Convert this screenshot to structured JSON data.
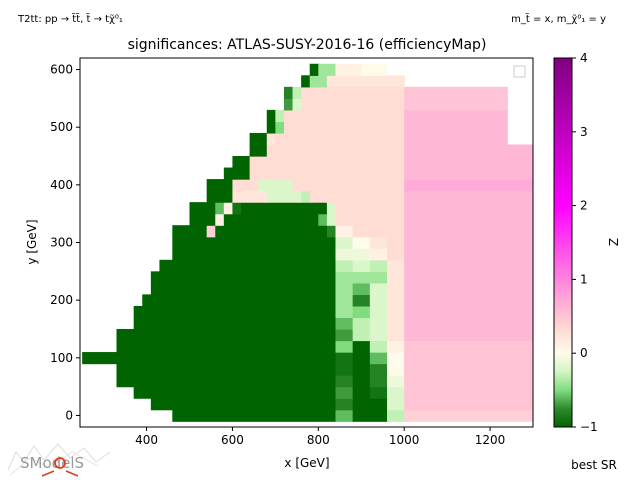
{
  "figure": {
    "top_left_note": "T2tt: pp → t̃t̃, t̃ → tχ̃⁰₁",
    "top_right_note": "m_t̃ = x, m_χ̃⁰₁ = y",
    "bottom_right_note": "best SR",
    "logo_text": "SModelS"
  },
  "colorbar": {
    "label": "Z",
    "min": -1,
    "max": 4,
    "ticks": [
      "−1",
      "0",
      "1",
      "2",
      "3",
      "4"
    ],
    "stops": [
      {
        "value": -1,
        "color": "#006400"
      },
      {
        "value": -0.75,
        "color": "#2e8b2e"
      },
      {
        "value": -0.5,
        "color": "#7fdc7f"
      },
      {
        "value": -0.25,
        "color": "#d2f5c3"
      },
      {
        "value": 0,
        "color": "#fffbea"
      },
      {
        "value": 0.3,
        "color": "#ffdcd4"
      },
      {
        "value": 0.8,
        "color": "#ff9ed8"
      },
      {
        "value": 2,
        "color": "#ff00ff"
      },
      {
        "value": 4,
        "color": "#800080"
      }
    ]
  },
  "chart_data": {
    "type": "heatmap",
    "title": "significances: ATLAS-SUSY-2016-16 (efficiencyMap)",
    "xlabel": "x [GeV]",
    "ylabel": "y [GeV]",
    "xlim": [
      245,
      1300
    ],
    "ylim": [
      -20,
      620
    ],
    "xticks": [
      400,
      600,
      800,
      1000,
      1200
    ],
    "yticks": [
      0,
      100,
      200,
      300,
      400,
      500,
      600
    ],
    "grid": false,
    "legend": "top-right (empty)",
    "cell_width_gev": 24,
    "cell_height_gev": 20,
    "rows": [
      {
        "y": 0,
        "z": [
          [
            460,
            840,
            -1
          ],
          [
            840,
            880,
            -0.6
          ],
          [
            880,
            960,
            -1
          ],
          [
            960,
            1000,
            -0.3
          ],
          [
            1000,
            1300,
            0.4
          ]
        ]
      },
      {
        "y": 20,
        "z": [
          [
            410,
            840,
            -1
          ],
          [
            840,
            880,
            -0.8
          ],
          [
            880,
            960,
            -1
          ],
          [
            960,
            1000,
            -0.2
          ],
          [
            1000,
            1300,
            0.5
          ]
        ]
      },
      {
        "y": 40,
        "z": [
          [
            370,
            840,
            -1
          ],
          [
            840,
            880,
            -0.7
          ],
          [
            880,
            920,
            -1
          ],
          [
            920,
            960,
            -0.9
          ],
          [
            960,
            1000,
            -0.2
          ],
          [
            1000,
            1300,
            0.5
          ]
        ]
      },
      {
        "y": 60,
        "z": [
          [
            330,
            840,
            -1
          ],
          [
            840,
            880,
            -0.8
          ],
          [
            880,
            920,
            -1
          ],
          [
            920,
            960,
            -0.8
          ],
          [
            960,
            1000,
            -0.1
          ],
          [
            1000,
            1300,
            0.5
          ]
        ]
      },
      {
        "y": 80,
        "z": [
          [
            330,
            840,
            -1
          ],
          [
            840,
            880,
            -0.9
          ],
          [
            880,
            920,
            -1
          ],
          [
            920,
            960,
            -0.8
          ],
          [
            960,
            1000,
            0.0
          ],
          [
            1000,
            1300,
            0.5
          ]
        ]
      },
      {
        "y": 100,
        "z": [
          [
            250,
            840,
            -1
          ],
          [
            840,
            880,
            -0.9
          ],
          [
            880,
            920,
            -1
          ],
          [
            920,
            960,
            -0.6
          ],
          [
            960,
            1000,
            0.0
          ],
          [
            1000,
            1300,
            0.5
          ]
        ]
      },
      {
        "y": 120,
        "z": [
          [
            330,
            840,
            -1
          ],
          [
            840,
            880,
            -0.5
          ],
          [
            880,
            920,
            -1
          ],
          [
            920,
            960,
            -0.3
          ],
          [
            960,
            1000,
            0.1
          ],
          [
            1000,
            1300,
            0.5
          ]
        ]
      },
      {
        "y": 140,
        "z": [
          [
            330,
            840,
            -1
          ],
          [
            840,
            880,
            -0.7
          ],
          [
            880,
            920,
            -0.3
          ],
          [
            920,
            960,
            -0.2
          ],
          [
            960,
            1000,
            0.2
          ],
          [
            1000,
            1300,
            0.6
          ]
        ]
      },
      {
        "y": 160,
        "z": [
          [
            370,
            840,
            -1
          ],
          [
            840,
            880,
            -0.6
          ],
          [
            880,
            920,
            -0.3
          ],
          [
            920,
            960,
            -0.2
          ],
          [
            960,
            1000,
            0.2
          ],
          [
            1000,
            1300,
            0.6
          ]
        ]
      },
      {
        "y": 180,
        "z": [
          [
            370,
            840,
            -1
          ],
          [
            840,
            880,
            -0.4
          ],
          [
            880,
            920,
            -0.5
          ],
          [
            920,
            960,
            -0.2
          ],
          [
            960,
            1000,
            0.2
          ],
          [
            1000,
            1300,
            0.6
          ]
        ]
      },
      {
        "y": 200,
        "z": [
          [
            390,
            840,
            -1
          ],
          [
            840,
            880,
            -0.4
          ],
          [
            880,
            920,
            -0.8
          ],
          [
            920,
            960,
            -0.2
          ],
          [
            960,
            1000,
            0.2
          ],
          [
            1000,
            1300,
            0.6
          ]
        ]
      },
      {
        "y": 220,
        "z": [
          [
            410,
            840,
            -1
          ],
          [
            840,
            880,
            -0.4
          ],
          [
            880,
            920,
            -0.6
          ],
          [
            920,
            960,
            -0.2
          ],
          [
            960,
            1000,
            0.2
          ],
          [
            1000,
            1300,
            0.6
          ]
        ]
      },
      {
        "y": 240,
        "z": [
          [
            410,
            840,
            -1
          ],
          [
            840,
            880,
            -0.4
          ],
          [
            880,
            920,
            -0.4
          ],
          [
            920,
            960,
            -0.4
          ],
          [
            960,
            1000,
            0.2
          ],
          [
            1000,
            1300,
            0.6
          ]
        ]
      },
      {
        "y": 260,
        "z": [
          [
            430,
            840,
            -1
          ],
          [
            840,
            880,
            -0.3
          ],
          [
            880,
            920,
            -0.2
          ],
          [
            920,
            960,
            -0.3
          ],
          [
            960,
            1000,
            0.2
          ],
          [
            1000,
            1300,
            0.6
          ]
        ]
      },
      {
        "y": 280,
        "z": [
          [
            460,
            840,
            -1
          ],
          [
            840,
            880,
            -0.1
          ],
          [
            880,
            920,
            -0.1
          ],
          [
            920,
            960,
            0.1
          ],
          [
            960,
            1000,
            0.3
          ],
          [
            1000,
            1300,
            0.6
          ]
        ]
      },
      {
        "y": 300,
        "z": [
          [
            460,
            840,
            -1
          ],
          [
            840,
            880,
            -0.2
          ],
          [
            880,
            920,
            0.0
          ],
          [
            920,
            960,
            0.2
          ],
          [
            960,
            1000,
            0.3
          ],
          [
            1000,
            1300,
            0.6
          ]
        ]
      },
      {
        "y": 320,
        "z": [
          [
            460,
            540,
            -1
          ],
          [
            540,
            560,
            0.4
          ],
          [
            560,
            820,
            -1
          ],
          [
            820,
            840,
            -0.8
          ],
          [
            840,
            880,
            0.1
          ],
          [
            880,
            1000,
            0.3
          ],
          [
            1000,
            1300,
            0.6
          ]
        ]
      },
      {
        "y": 340,
        "z": [
          [
            500,
            560,
            -1
          ],
          [
            560,
            580,
            0.1
          ],
          [
            580,
            800,
            -1
          ],
          [
            800,
            820,
            -0.6
          ],
          [
            820,
            840,
            -0.2
          ],
          [
            840,
            1000,
            0.3
          ],
          [
            1000,
            1300,
            0.6
          ]
        ]
      },
      {
        "y": 360,
        "z": [
          [
            500,
            560,
            -1
          ],
          [
            560,
            580,
            -0.6
          ],
          [
            580,
            600,
            0.1
          ],
          [
            600,
            620,
            -0.9
          ],
          [
            620,
            820,
            -1
          ],
          [
            820,
            840,
            -0.2
          ],
          [
            840,
            1000,
            0.3
          ],
          [
            1000,
            1300,
            0.6
          ]
        ]
      },
      {
        "y": 380,
        "z": [
          [
            540,
            600,
            -1
          ],
          [
            600,
            680,
            0.2
          ],
          [
            680,
            760,
            -0.2
          ],
          [
            760,
            780,
            -0.3
          ],
          [
            780,
            1000,
            0.3
          ],
          [
            1000,
            1300,
            0.6
          ]
        ]
      },
      {
        "y": 400,
        "z": [
          [
            540,
            600,
            -1
          ],
          [
            600,
            660,
            0.3
          ],
          [
            660,
            740,
            -0.2
          ],
          [
            740,
            1000,
            0.3
          ],
          [
            1000,
            1300,
            0.7
          ]
        ]
      },
      {
        "y": 420,
        "z": [
          [
            580,
            640,
            -1
          ],
          [
            640,
            1000,
            0.3
          ],
          [
            1000,
            1300,
            0.6
          ]
        ]
      },
      {
        "y": 440,
        "z": [
          [
            600,
            640,
            -1
          ],
          [
            640,
            1000,
            0.3
          ],
          [
            1000,
            1300,
            0.6
          ]
        ]
      },
      {
        "y": 460,
        "z": [
          [
            640,
            680,
            -1
          ],
          [
            680,
            1000,
            0.3
          ],
          [
            1000,
            1300,
            0.6
          ]
        ]
      },
      {
        "y": 480,
        "z": [
          [
            640,
            680,
            -1
          ],
          [
            680,
            700,
            0.2
          ],
          [
            700,
            1000,
            0.3
          ],
          [
            1000,
            1240,
            0.6
          ]
        ]
      },
      {
        "y": 500,
        "z": [
          [
            680,
            700,
            -1
          ],
          [
            700,
            720,
            -0.5
          ],
          [
            720,
            1000,
            0.3
          ],
          [
            1000,
            1240,
            0.6
          ]
        ]
      },
      {
        "y": 520,
        "z": [
          [
            680,
            700,
            -1
          ],
          [
            700,
            720,
            -0.3
          ],
          [
            720,
            1000,
            0.3
          ],
          [
            1000,
            1240,
            0.6
          ]
        ]
      },
      {
        "y": 540,
        "z": [
          [
            720,
            740,
            -0.7
          ],
          [
            740,
            760,
            -0.2
          ],
          [
            760,
            1000,
            0.3
          ],
          [
            1000,
            1240,
            0.5
          ]
        ]
      },
      {
        "y": 560,
        "z": [
          [
            720,
            740,
            -0.8
          ],
          [
            740,
            760,
            -0.3
          ],
          [
            760,
            1000,
            0.3
          ],
          [
            1000,
            1240,
            0.5
          ]
        ]
      },
      {
        "y": 580,
        "z": [
          [
            760,
            780,
            -1
          ],
          [
            780,
            820,
            -0.4
          ],
          [
            820,
            900,
            0.2
          ],
          [
            900,
            1000,
            0.2
          ]
        ]
      },
      {
        "y": 600,
        "z": [
          [
            780,
            800,
            -1
          ],
          [
            800,
            840,
            -0.4
          ],
          [
            840,
            900,
            0.1
          ],
          [
            900,
            960,
            0.0
          ]
        ]
      }
    ]
  }
}
